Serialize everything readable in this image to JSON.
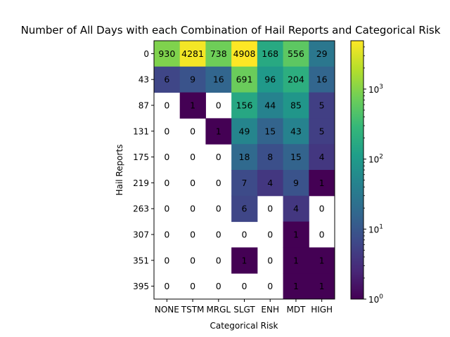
{
  "chart_data": {
    "type": "heatmap",
    "title": "Number of All Days with each Combination of Hail Reports and Categorical Risk",
    "xlabel": "Categorical Risk",
    "ylabel": "Hail Reports",
    "x_categories": [
      "NONE",
      "TSTM",
      "MRGL",
      "SLGT",
      "ENH",
      "MDT",
      "HIGH"
    ],
    "y_categories": [
      "0",
      "43",
      "87",
      "131",
      "175",
      "219",
      "263",
      "307",
      "351",
      "395"
    ],
    "values": [
      [
        930,
        4281,
        738,
        4908,
        168,
        556,
        29
      ],
      [
        6,
        9,
        16,
        691,
        96,
        204,
        16
      ],
      [
        0,
        1,
        0,
        156,
        44,
        85,
        5
      ],
      [
        0,
        0,
        1,
        49,
        15,
        43,
        5
      ],
      [
        0,
        0,
        0,
        18,
        8,
        15,
        4
      ],
      [
        0,
        0,
        0,
        7,
        4,
        9,
        1
      ],
      [
        0,
        0,
        0,
        6,
        0,
        4,
        0
      ],
      [
        0,
        0,
        0,
        0,
        0,
        1,
        0
      ],
      [
        0,
        0,
        0,
        1,
        0,
        1,
        1
      ],
      [
        0,
        0,
        0,
        0,
        0,
        1,
        1
      ]
    ],
    "masked_cells_shown_white": [
      [
        2,
        0
      ],
      [
        2,
        2
      ],
      [
        3,
        0
      ],
      [
        3,
        1
      ],
      [
        4,
        0
      ],
      [
        4,
        1
      ],
      [
        4,
        2
      ],
      [
        5,
        0
      ],
      [
        5,
        1
      ],
      [
        5,
        2
      ],
      [
        6,
        0
      ],
      [
        6,
        1
      ],
      [
        6,
        2
      ],
      [
        6,
        4
      ],
      [
        6,
        6
      ],
      [
        7,
        0
      ],
      [
        7,
        1
      ],
      [
        7,
        2
      ],
      [
        7,
        3
      ],
      [
        7,
        4
      ],
      [
        7,
        6
      ],
      [
        8,
        0
      ],
      [
        8,
        1
      ],
      [
        8,
        2
      ],
      [
        8,
        4
      ],
      [
        9,
        0
      ],
      [
        9,
        1
      ],
      [
        9,
        2
      ],
      [
        9,
        3
      ],
      [
        9,
        4
      ]
    ],
    "colorbar": {
      "scale": "log",
      "colormap": "viridis",
      "range": [
        1,
        4908
      ],
      "tick_labels": [
        "10^0",
        "10^1",
        "10^2",
        "10^3"
      ]
    }
  }
}
